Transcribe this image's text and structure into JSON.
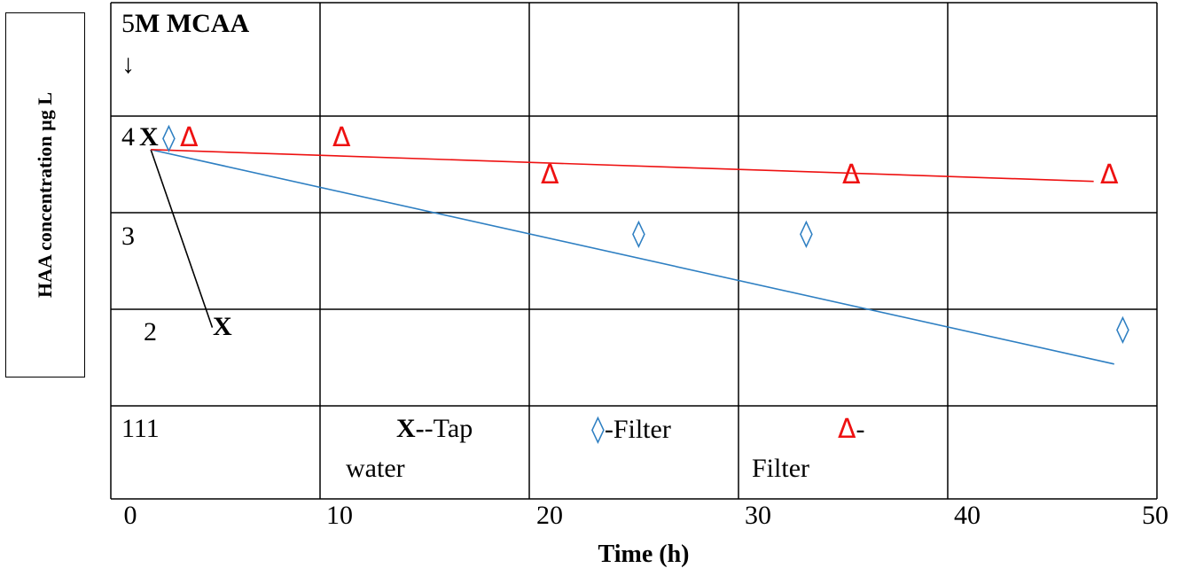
{
  "chart_data": {
    "type": "scatter",
    "xlabel": "Time (h)",
    "ylabel": "HAA concentration µg L",
    "xlim": [
      0,
      50
    ],
    "x_ticks": [
      "0",
      "10",
      "20",
      "30",
      "40",
      "50"
    ],
    "y_ticks": [
      "5",
      "4",
      "3",
      "2",
      "111"
    ],
    "grid": true,
    "annotation": "M   MCAA",
    "annotation_arrow": "↓",
    "marker_tap": "X",
    "marker_filter_diamond": "◊",
    "marker_filter_triangle": "Δ",
    "legend": [
      {
        "marker": "X",
        "text": "-Tap",
        "text2": "water",
        "color": "#000000"
      },
      {
        "marker": "◊",
        "text": "-Filter",
        "text2": "",
        "color": "#2e7fc2"
      },
      {
        "marker": "Δ",
        "text": "-",
        "text2": "Filter",
        "color": "#ee1111"
      }
    ],
    "series": [
      {
        "points": [
          [
            1,
            4.0
          ],
          [
            4.5,
            1.8
          ]
        ],
        "fit": [
          [
            1,
            3.9
          ],
          [
            4,
            2.05
          ]
        ],
        "color": "#000000"
      },
      {
        "points": [
          [
            2,
            4.0
          ],
          [
            25,
            3.2
          ],
          [
            33,
            3.2
          ],
          [
            48.5,
            1.8
          ]
        ],
        "fit": [
          [
            1,
            3.9
          ],
          [
            48,
            1.67
          ]
        ],
        "color": "#2e7fc2"
      },
      {
        "points": [
          [
            3,
            4.0
          ],
          [
            11,
            4.0
          ],
          [
            21,
            3.65
          ],
          [
            35,
            3.65
          ],
          [
            48,
            3.65
          ]
        ],
        "fit": [
          [
            1,
            3.9
          ],
          [
            47,
            3.57
          ]
        ],
        "color": "#ee1111"
      }
    ]
  }
}
